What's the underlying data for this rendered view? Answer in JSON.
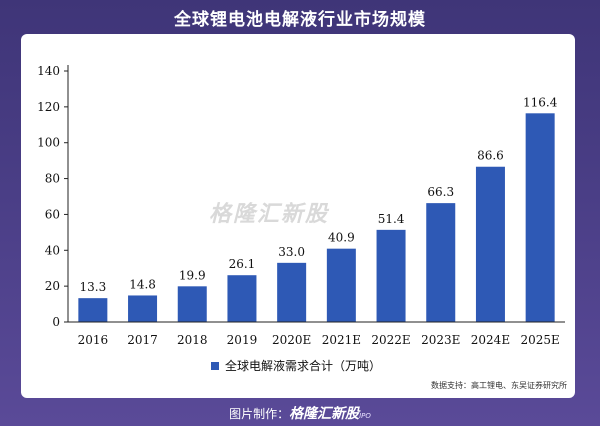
{
  "header": {
    "title": "全球锂电池电解液行业市场规模"
  },
  "source": "数据支持：高工锂电、东吴证券研究所",
  "watermark": "格隆汇新股",
  "footer": {
    "prefix": "图片制作：",
    "brand": "格隆汇新股",
    "suffix": "IPO"
  },
  "colors": {
    "bar": "#2e59b5",
    "axis": "#222222",
    "background_top": "#3f3578",
    "background_bottom": "#5a4a98"
  },
  "chart_data": {
    "type": "bar",
    "categories": [
      "2016",
      "2017",
      "2018",
      "2019",
      "2020E",
      "2021E",
      "2022E",
      "2023E",
      "2024E",
      "2025E"
    ],
    "series": [
      {
        "name": "全球电解液需求合计（万吨）",
        "values": [
          13.3,
          14.8,
          19.9,
          26.1,
          33.0,
          40.9,
          51.4,
          66.3,
          86.6,
          116.4
        ]
      }
    ],
    "value_labels": [
      "13.3",
      "14.8",
      "19.9",
      "26.1",
      "33.0",
      "40.9",
      "51.4",
      "66.3",
      "86.6",
      "116.4"
    ],
    "yticks": [
      "0",
      "20",
      "40",
      "60",
      "80",
      "100",
      "120",
      "140"
    ],
    "ylim": [
      0,
      140
    ],
    "grid": false,
    "legend_position": "bottom"
  }
}
